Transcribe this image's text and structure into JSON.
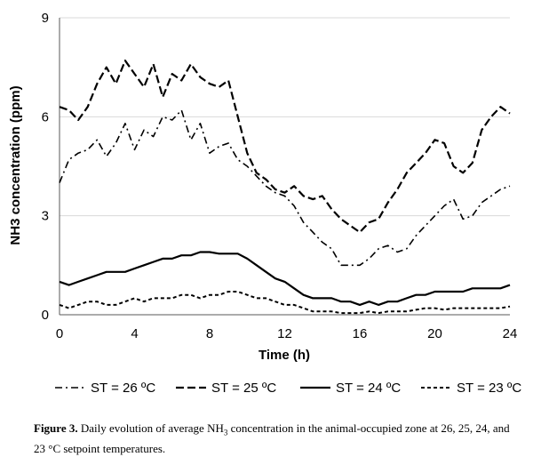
{
  "chart_data": {
    "type": "line",
    "xlabel": "Time (h)",
    "ylabel": "NH3 concentration (ppm)",
    "xlim": [
      0,
      24
    ],
    "ylim": [
      0,
      9
    ],
    "xticks": [
      "0",
      "4",
      "8",
      "12",
      "16",
      "20",
      "24"
    ],
    "yticks": [
      "0",
      "3",
      "6",
      "9"
    ],
    "grid": "horizontal",
    "legend_position": "bottom",
    "series": [
      {
        "name": "ST = 26 ºC",
        "style": "dash-dot",
        "x": [
          0,
          0.5,
          1,
          1.5,
          2,
          2.5,
          3,
          3.5,
          4,
          4.5,
          5,
          5.5,
          6,
          6.5,
          7,
          7.5,
          8,
          8.5,
          9,
          9.5,
          10,
          10.5,
          11,
          11.5,
          12,
          12.5,
          13,
          13.5,
          14,
          14.5,
          15,
          15.5,
          16,
          16.5,
          17,
          17.5,
          18,
          18.5,
          19,
          19.5,
          20,
          20.5,
          21,
          21.5,
          22,
          22.5,
          23,
          23.5,
          24
        ],
        "y": [
          4.0,
          4.7,
          4.9,
          5.0,
          5.3,
          4.8,
          5.2,
          5.8,
          5.0,
          5.6,
          5.4,
          6.0,
          5.9,
          6.2,
          5.3,
          5.8,
          4.9,
          5.1,
          5.2,
          4.7,
          4.5,
          4.2,
          3.9,
          3.7,
          3.6,
          3.3,
          2.8,
          2.5,
          2.2,
          2.0,
          1.5,
          1.5,
          1.5,
          1.7,
          2.0,
          2.1,
          1.9,
          2.0,
          2.4,
          2.7,
          3.0,
          3.3,
          3.5,
          2.9,
          3.0,
          3.4,
          3.6,
          3.8,
          3.9
        ]
      },
      {
        "name": "ST = 25 ºC",
        "style": "dashed",
        "x": [
          0,
          0.5,
          1,
          1.5,
          2,
          2.5,
          3,
          3.5,
          4,
          4.5,
          5,
          5.5,
          6,
          6.5,
          7,
          7.5,
          8,
          8.5,
          9,
          9.5,
          10,
          10.5,
          11,
          11.5,
          12,
          12.5,
          13,
          13.5,
          14,
          14.5,
          15,
          15.5,
          16,
          16.5,
          17,
          17.5,
          18,
          18.5,
          19,
          19.5,
          20,
          20.5,
          21,
          21.5,
          22,
          22.5,
          23,
          23.5,
          24
        ],
        "y": [
          6.3,
          6.2,
          5.9,
          6.3,
          7.0,
          7.5,
          7.0,
          7.7,
          7.3,
          6.9,
          7.6,
          6.6,
          7.3,
          7.1,
          7.6,
          7.2,
          7.0,
          6.9,
          7.1,
          6.0,
          4.9,
          4.3,
          4.1,
          3.8,
          3.7,
          3.9,
          3.6,
          3.5,
          3.6,
          3.2,
          2.9,
          2.7,
          2.5,
          2.8,
          2.9,
          3.4,
          3.8,
          4.3,
          4.6,
          4.9,
          5.3,
          5.2,
          4.5,
          4.3,
          4.6,
          5.6,
          6.0,
          6.3,
          6.1
        ]
      },
      {
        "name": "ST = 24 ºC",
        "style": "solid",
        "x": [
          0,
          0.5,
          1,
          1.5,
          2,
          2.5,
          3,
          3.5,
          4,
          4.5,
          5,
          5.5,
          6,
          6.5,
          7,
          7.5,
          8,
          8.5,
          9,
          9.5,
          10,
          10.5,
          11,
          11.5,
          12,
          12.5,
          13,
          13.5,
          14,
          14.5,
          15,
          15.5,
          16,
          16.5,
          17,
          17.5,
          18,
          18.5,
          19,
          19.5,
          20,
          20.5,
          21,
          21.5,
          22,
          22.5,
          23,
          23.5,
          24
        ],
        "y": [
          1.0,
          0.9,
          1.0,
          1.1,
          1.2,
          1.3,
          1.3,
          1.3,
          1.4,
          1.5,
          1.6,
          1.7,
          1.7,
          1.8,
          1.8,
          1.9,
          1.9,
          1.85,
          1.85,
          1.85,
          1.7,
          1.5,
          1.3,
          1.1,
          1.0,
          0.8,
          0.6,
          0.5,
          0.5,
          0.5,
          0.4,
          0.4,
          0.3,
          0.4,
          0.3,
          0.4,
          0.4,
          0.5,
          0.6,
          0.6,
          0.7,
          0.7,
          0.7,
          0.7,
          0.8,
          0.8,
          0.8,
          0.8,
          0.9
        ]
      },
      {
        "name": "ST = 23 ºC",
        "style": "dotted",
        "x": [
          0,
          0.5,
          1,
          1.5,
          2,
          2.5,
          3,
          3.5,
          4,
          4.5,
          5,
          5.5,
          6,
          6.5,
          7,
          7.5,
          8,
          8.5,
          9,
          9.5,
          10,
          10.5,
          11,
          11.5,
          12,
          12.5,
          13,
          13.5,
          14,
          14.5,
          15,
          15.5,
          16,
          16.5,
          17,
          17.5,
          18,
          18.5,
          19,
          19.5,
          20,
          20.5,
          21,
          21.5,
          22,
          22.5,
          23,
          23.5,
          24
        ],
        "y": [
          0.3,
          0.2,
          0.3,
          0.4,
          0.4,
          0.3,
          0.3,
          0.4,
          0.5,
          0.4,
          0.5,
          0.5,
          0.5,
          0.6,
          0.6,
          0.5,
          0.6,
          0.6,
          0.7,
          0.7,
          0.6,
          0.5,
          0.5,
          0.4,
          0.3,
          0.3,
          0.2,
          0.1,
          0.1,
          0.1,
          0.05,
          0.05,
          0.05,
          0.1,
          0.05,
          0.1,
          0.1,
          0.1,
          0.15,
          0.2,
          0.2,
          0.15,
          0.2,
          0.2,
          0.2,
          0.2,
          0.2,
          0.2,
          0.25
        ]
      }
    ]
  },
  "caption": {
    "label": "Figure 3.",
    "text_before": " Daily evolution of average NH",
    "subscript": "3",
    "text_after": " concentration in the animal-occupied zone at 26, 25, 24, and 23 °C setpoint temperatures."
  }
}
